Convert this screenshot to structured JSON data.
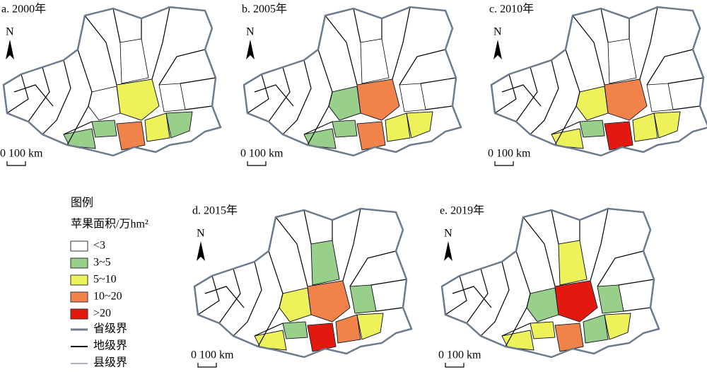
{
  "panels": [
    {
      "title": "a. 2000年",
      "north": "N",
      "scale": "0 100 km"
    },
    {
      "title": "b. 2005年",
      "north": "N",
      "scale": "0 100 km"
    },
    {
      "title": "c. 2010年",
      "north": "N",
      "scale": "0 100 km"
    },
    {
      "title": "d. 2015年",
      "north": "N",
      "scale": "0 100 km"
    },
    {
      "title": "e. 2019年",
      "north": "N",
      "scale": "0 100 km"
    }
  ],
  "legend": {
    "title": "图例",
    "subtitle": "苹果面积/万hm²",
    "classes": [
      {
        "label": "<3",
        "color": "#ffffff"
      },
      {
        "label": "3~5",
        "color": "#98cf8a"
      },
      {
        "label": "5~10",
        "color": "#eef25a"
      },
      {
        "label": "10~20",
        "color": "#f0824a"
      },
      {
        "label": ">20",
        "color": "#e3190f"
      }
    ],
    "lines": [
      {
        "label": "省级界",
        "color": "#6b7b8c"
      },
      {
        "label": "地级界",
        "color": "#000000"
      },
      {
        "label": "县级界",
        "color": "#a9b3bd"
      }
    ]
  }
}
